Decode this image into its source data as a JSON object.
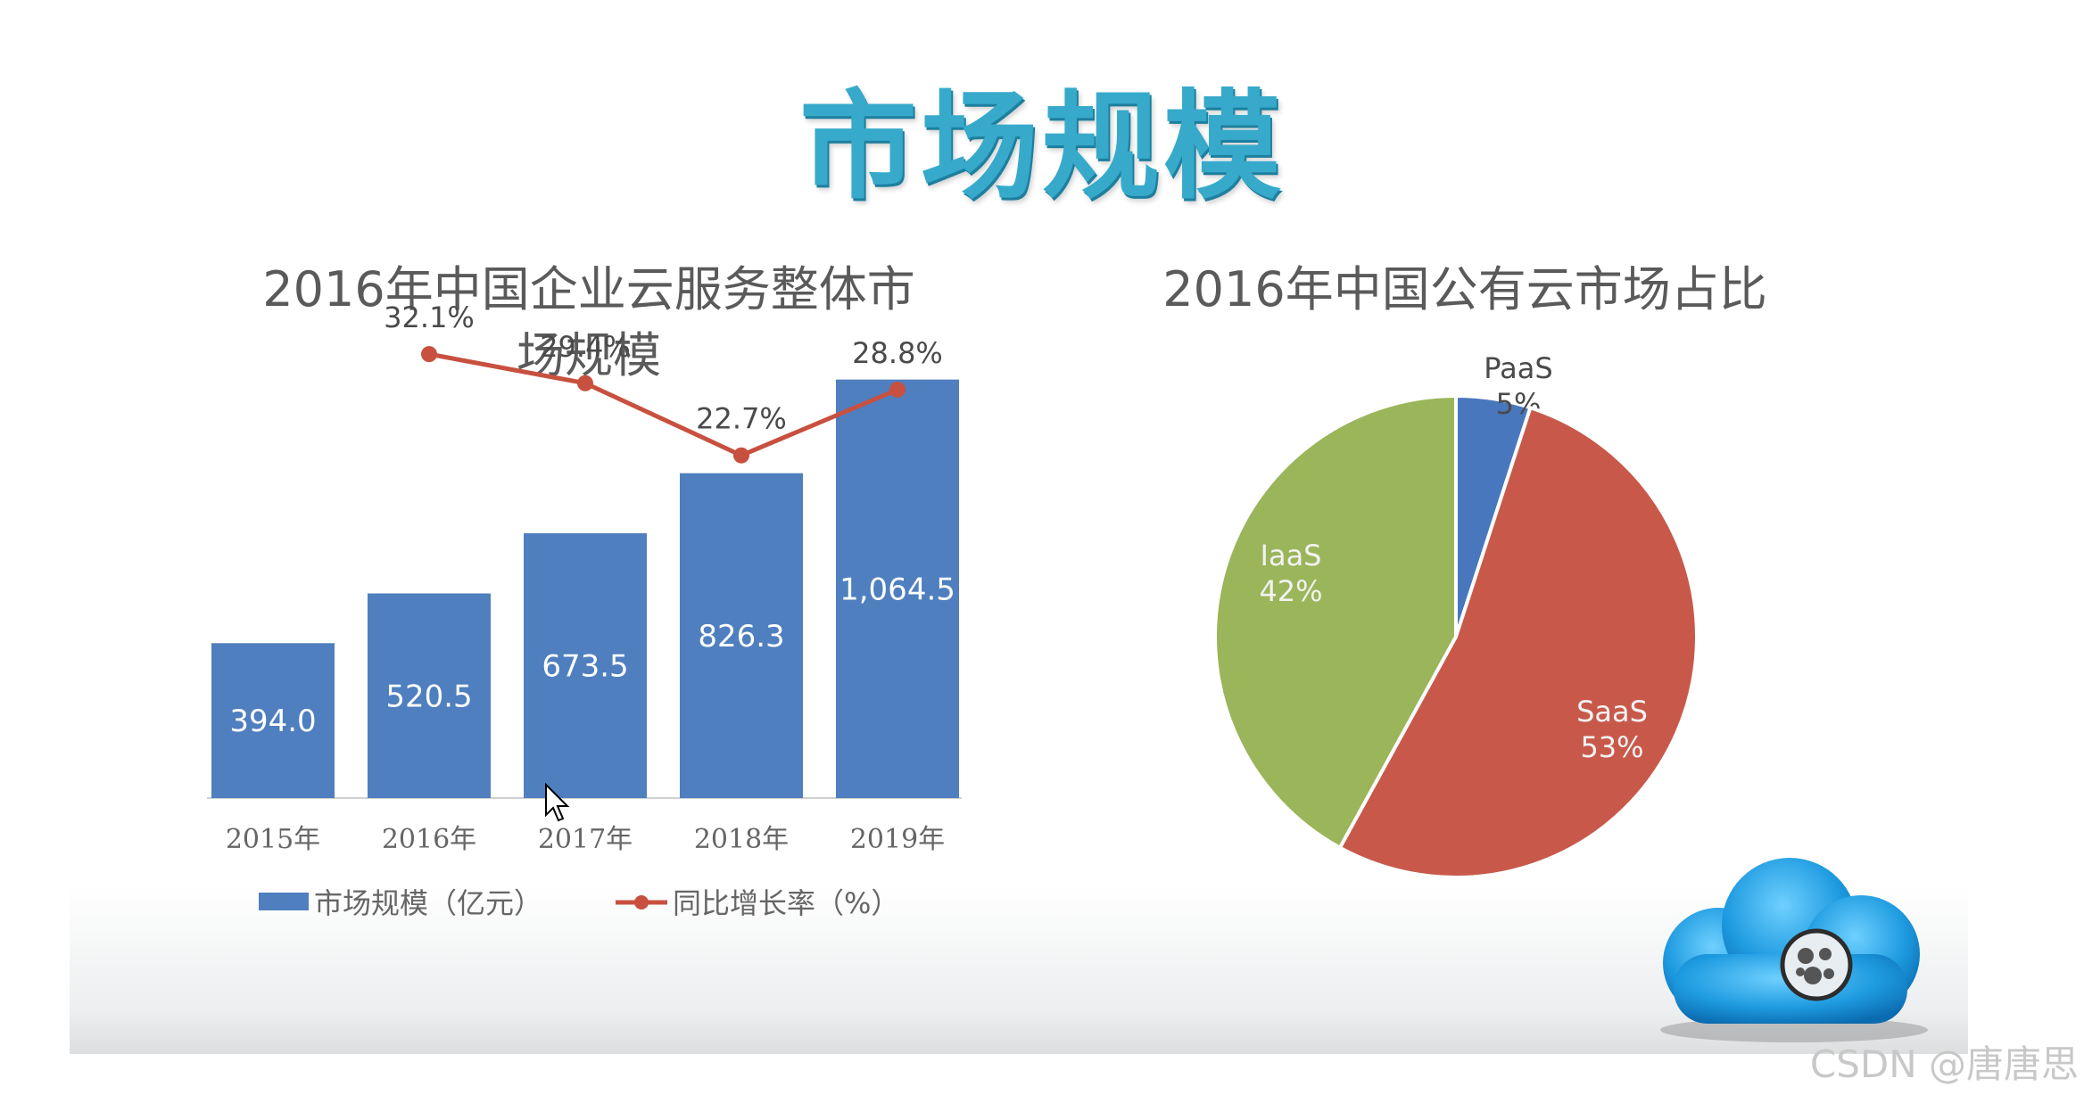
{
  "title": "市场规模",
  "watermark": "CSDN @唐唐思",
  "colors": {
    "title": "#37aacb",
    "bar": "#4f7fbf",
    "line": "#c8503f",
    "pie_paas": "#4877bd",
    "pie_saas": "#c8594a",
    "pie_iaas": "#9bb55a"
  },
  "chart_data": [
    {
      "type": "bar",
      "title": "2016年中国企业云服务整体市场规模",
      "title_line1": "2016年中国企业云服务整体市",
      "title_line2": "场规模",
      "categories": [
        "2015年",
        "2016年",
        "2017年",
        "2018年",
        "2019年"
      ],
      "series": [
        {
          "name": "市场规模（亿元）",
          "kind": "bar",
          "values": [
            394.0,
            520.5,
            673.5,
            826.3,
            1064.5
          ],
          "labels": [
            "394.0",
            "520.5",
            "673.5",
            "826.3",
            "1,064.5"
          ]
        },
        {
          "name": "同比增长率（%）",
          "kind": "line",
          "values": [
            null,
            32.1,
            29.4,
            22.7,
            28.8
          ],
          "labels": [
            "",
            "32.1%",
            "29.4%",
            "22.7%",
            "28.8%"
          ]
        }
      ],
      "ylim": [
        0,
        1100
      ],
      "y2lim": [
        0,
        48
      ],
      "legend": "bottom",
      "grid": false
    },
    {
      "type": "pie",
      "title": "2016年中国公有云市场占比",
      "slices": [
        {
          "name": "PaaS",
          "value": 5,
          "label": "5%"
        },
        {
          "name": "SaaS",
          "value": 53,
          "label": "53%"
        },
        {
          "name": "IaaS",
          "value": 42,
          "label": "42%"
        }
      ],
      "start": "top",
      "direction": "clockwise",
      "legend": "none"
    }
  ]
}
